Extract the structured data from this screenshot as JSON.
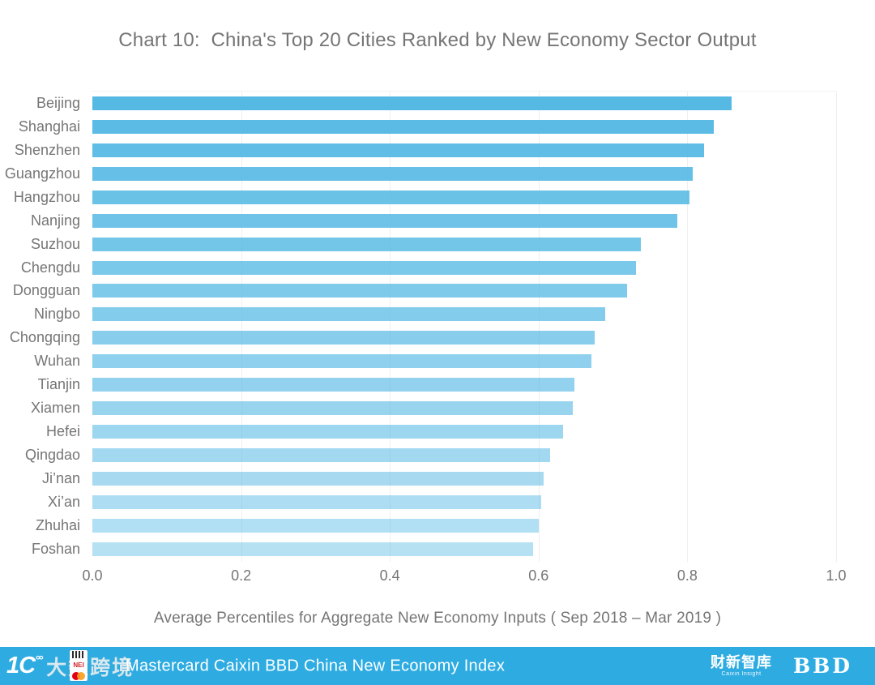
{
  "title": "Chart 10:  China's Top 20 Cities Ranked by New Economy Sector Output",
  "chart_data": {
    "type": "bar",
    "orientation": "horizontal",
    "title": "Chart 10:  China's Top 20 Cities Ranked by New Economy Sector Output",
    "categories": [
      "Beijing",
      "Shanghai",
      "Shenzhen",
      "Guangzhou",
      "Hangzhou",
      "Nanjing",
      "Suzhou",
      "Chengdu",
      "Dongguan",
      "Ningbo",
      "Chongqing",
      "Wuhan",
      "Tianjin",
      "Xiamen",
      "Hefei",
      "Qingdao",
      "Ji’nan",
      "Xi’an",
      "Zhuhai",
      "Foshan"
    ],
    "values": [
      0.86,
      0.836,
      0.822,
      0.807,
      0.803,
      0.786,
      0.738,
      0.731,
      0.719,
      0.69,
      0.675,
      0.671,
      0.648,
      0.646,
      0.633,
      0.616,
      0.607,
      0.603,
      0.6,
      0.593
    ],
    "xlabel": "Average Percentiles for Aggregate New Economy Inputs ( Sep 2018 – Mar 2019 )",
    "ylabel": "",
    "xlim": [
      0,
      1
    ],
    "xticks": [
      0.0,
      0.2,
      0.4,
      0.6,
      0.8,
      1.0
    ],
    "xtick_labels": [
      "0.0",
      "0.2",
      "0.4",
      "0.6",
      "0.8",
      "1.0"
    ],
    "grid": true,
    "legend": false,
    "bar_color": "#56b9e4",
    "bar_fade_min_opacity": 0.43,
    "gridline_color": "#efefef",
    "text_color": "#757575"
  },
  "footer": {
    "bg_color": "#2eace2",
    "index_title": "Mastercard Caixin BBD China New Economy Index",
    "watermark": {
      "icon_text": "1Ϲ",
      "icon_sup": "°°",
      "brand_text": "大数跨境",
      "badge_text": "NEI"
    },
    "caixin_logo": {
      "cn": "财新智库",
      "en": "Caixin Insight"
    },
    "bbd_logo": "BBD"
  }
}
